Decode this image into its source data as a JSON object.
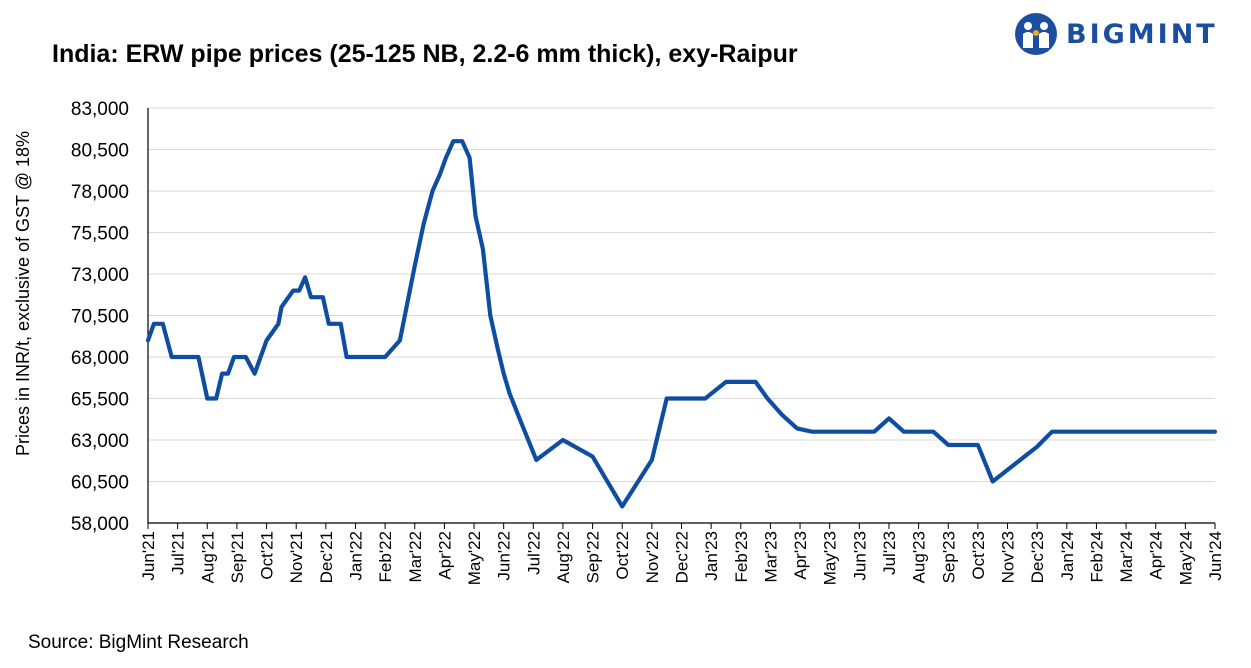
{
  "header": {
    "title": "India: ERW pipe prices (25-125 NB, 2.2-6 mm thick), exy-Raipur",
    "logo_text": "BIGMINT"
  },
  "footer": {
    "source": "Source: BigMint Research"
  },
  "colors": {
    "line": "#0e4ea2",
    "grid": "#d9d9d9",
    "axis": "#000000",
    "logo": "#1a4e9f"
  },
  "chart_data": {
    "type": "line",
    "title": "India: ERW pipe prices (25-125 NB, 2.2-6 mm thick), exy-Raipur",
    "xlabel": "",
    "ylabel": "Prices in INR/t, exclusive of GST @ 18%",
    "ylim": [
      58000,
      83000
    ],
    "yticks": [
      58000,
      60500,
      63000,
      65500,
      68000,
      70500,
      73000,
      75500,
      78000,
      80500,
      83000
    ],
    "ytick_labels": [
      "58,000",
      "60,500",
      "63,000",
      "65,500",
      "68,000",
      "70,500",
      "73,000",
      "75,500",
      "78,000",
      "80,500",
      "83,000"
    ],
    "grid": true,
    "categories": [
      "Jun'21",
      "Jul'21",
      "Aug'21",
      "Sep'21",
      "Oct'21",
      "Nov'21",
      "Dec'21",
      "Jan'22",
      "Feb'22",
      "Mar'22",
      "Apr'22",
      "May'22",
      "Jun'22",
      "Jul'22",
      "Aug'22",
      "Sep'22",
      "Oct'22",
      "Nov'22",
      "Dec'22",
      "Jan'23",
      "Feb'23",
      "Mar'23",
      "Apr'23",
      "May'23",
      "Jun'23",
      "Jul'23",
      "Aug'23",
      "Sep'23",
      "Oct'23",
      "Nov'23",
      "Dec'23",
      "Jan'24",
      "Feb'24",
      "Mar'24",
      "Apr'24",
      "May'24",
      "Jun'24"
    ],
    "series": [
      {
        "name": "ERW pipe price",
        "x": [
          0,
          0.2,
          0.5,
          0.8,
          1.2,
          1.5,
          1.7,
          2.0,
          2.3,
          2.5,
          2.7,
          2.9,
          3.1,
          3.3,
          3.6,
          3.8,
          4.0,
          4.2,
          4.4,
          4.5,
          4.7,
          4.9,
          5.1,
          5.3,
          5.5,
          5.7,
          5.9,
          6.1,
          6.3,
          6.5,
          6.7,
          7.1,
          7.5,
          8.0,
          8.5,
          9.0,
          9.3,
          9.6,
          9.85,
          10.05,
          10.3,
          10.6,
          10.85,
          11.05,
          11.3,
          11.55,
          11.8,
          12.0,
          12.2,
          12.6,
          13.1,
          14.0,
          15.0,
          16.0,
          17.0,
          17.5,
          18.0,
          18.8,
          19.5,
          20.1,
          20.5,
          20.9,
          21.4,
          21.9,
          22.4,
          23.0,
          23.5,
          24.0,
          24.5,
          25.0,
          25.5,
          26.0,
          26.5,
          27.0,
          27.5,
          28.0,
          28.5,
          29.0,
          29.5,
          30.0,
          30.5,
          31.0,
          31.5,
          32.0,
          32.5,
          33.0,
          33.5,
          34.0,
          34.5,
          35.0,
          35.5,
          36.0
        ],
        "values": [
          69000,
          70000,
          70000,
          68000,
          68000,
          68000,
          68000,
          65500,
          65500,
          67000,
          67000,
          68000,
          68000,
          68000,
          67000,
          68000,
          69000,
          69500,
          70000,
          71000,
          71500,
          72000,
          72000,
          72800,
          71600,
          71600,
          71600,
          70000,
          70000,
          70000,
          68000,
          68000,
          68000,
          68000,
          69000,
          73500,
          76000,
          78000,
          79000,
          80000,
          81000,
          81000,
          80000,
          76500,
          74500,
          70500,
          68500,
          67000,
          65800,
          64000,
          61800,
          63000,
          62000,
          59000,
          61800,
          65500,
          65500,
          65500,
          66500,
          66500,
          66500,
          65500,
          64500,
          63700,
          63500,
          63500,
          63500,
          63500,
          63500,
          64300,
          63500,
          63500,
          63500,
          62700,
          62700,
          62700,
          60500,
          61200,
          61900,
          62600,
          63500,
          63500,
          63500,
          63500,
          63500,
          63500,
          63500,
          63500,
          63500,
          63500,
          63500,
          63500
        ]
      }
    ]
  }
}
